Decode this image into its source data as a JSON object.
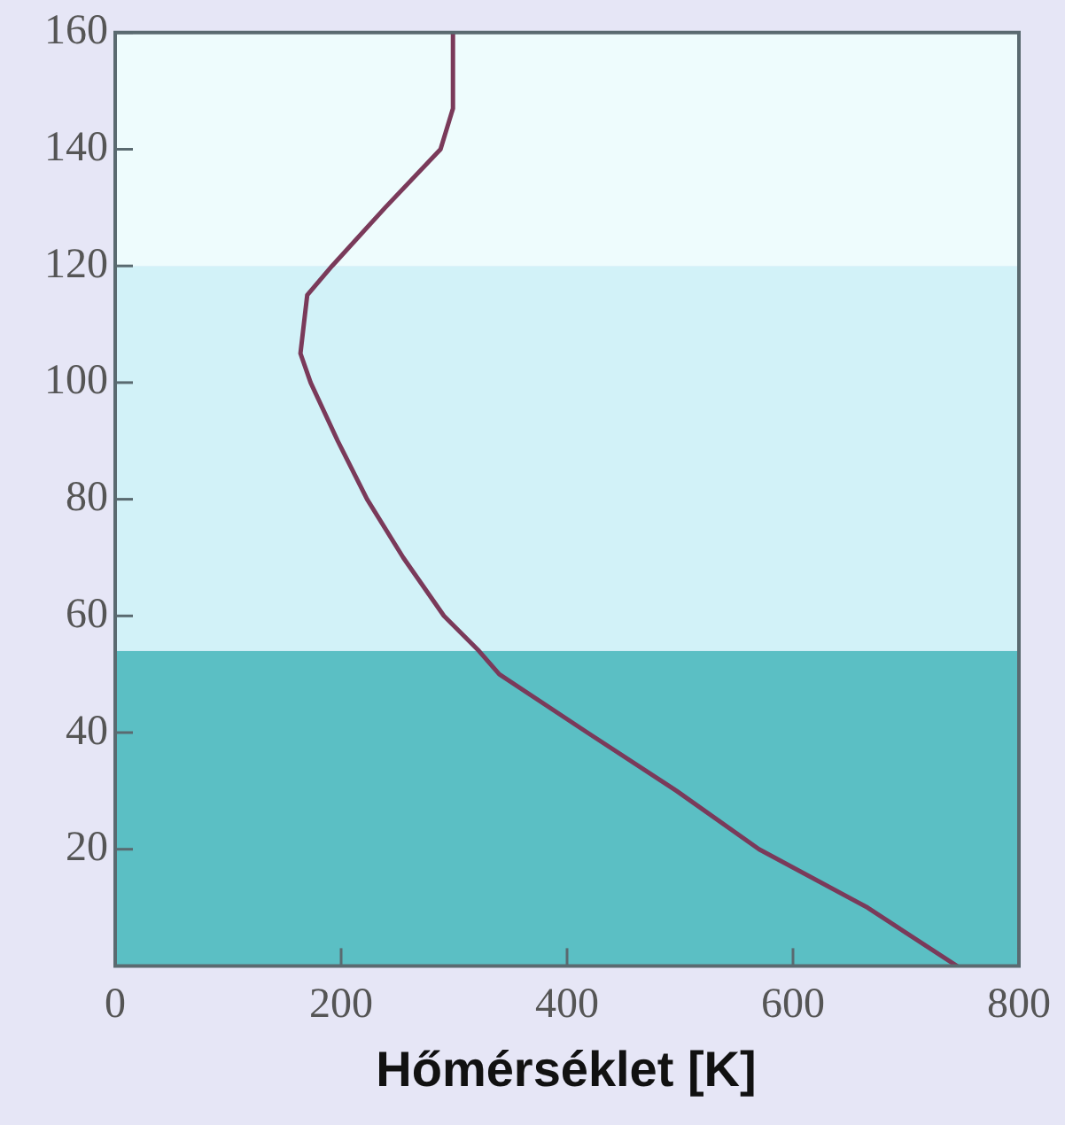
{
  "chart_data": {
    "type": "line",
    "xlabel": "Hőmérséklet [K]",
    "xlim": [
      0,
      800
    ],
    "xticks": [
      0,
      200,
      400,
      600,
      800
    ],
    "ylim": [
      0,
      160
    ],
    "yticks": [
      20,
      40,
      60,
      80,
      100,
      120,
      140,
      160
    ],
    "grid": false,
    "legend": false,
    "marker": "none",
    "line_style": "solid",
    "bands": [
      {
        "axis": "y",
        "from": 0,
        "to": 54,
        "color": "#5bbfc4"
      },
      {
        "axis": "y",
        "from": 54,
        "to": 120,
        "color": "#d2f2f8"
      },
      {
        "axis": "y",
        "from": 120,
        "to": 160,
        "color": "#eefcfd"
      }
    ],
    "series": [
      {
        "color": "#7a3a5a",
        "x": [
          745,
          666,
          570,
          497,
          418,
          340,
          322,
          291,
          255,
          223,
          197,
          173,
          164,
          167,
          170,
          192,
          239,
          288,
          299,
          299
        ],
        "values": [
          0,
          10,
          20,
          30,
          40,
          50,
          54,
          60,
          70,
          80,
          90,
          100,
          105,
          110,
          115,
          120,
          130,
          140,
          147,
          160
        ]
      }
    ]
  }
}
